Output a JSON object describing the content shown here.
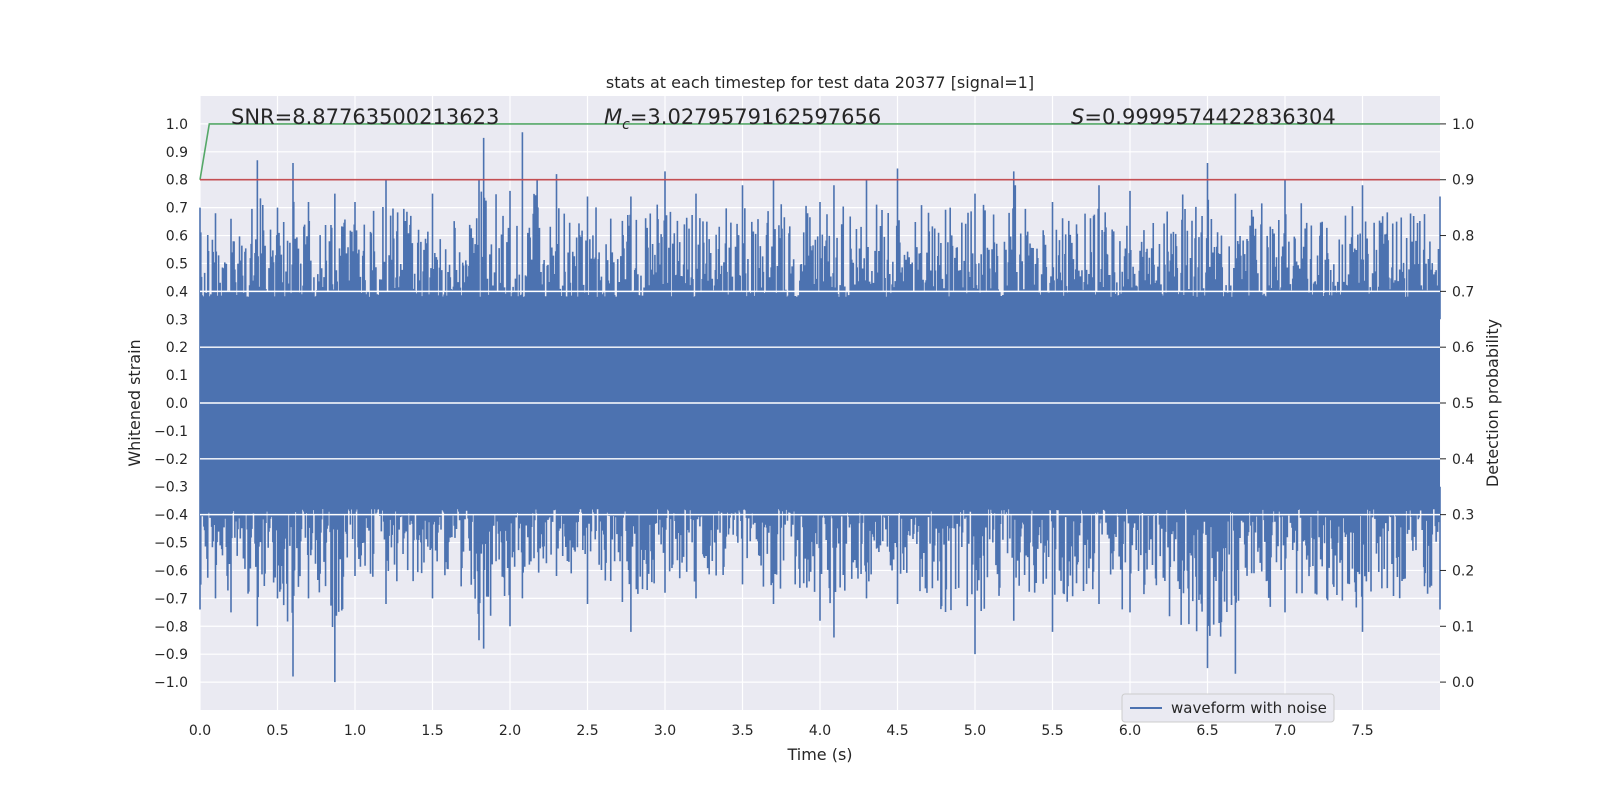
{
  "chart_data": {
    "type": "line",
    "title": "stats at each timestep for test data 20377 [signal=1]",
    "xlabel": "Time (s)",
    "ylabel": "Whitened strain",
    "y2label": "Detection probability",
    "xlim": [
      0.0,
      8.0
    ],
    "ylim": [
      -1.1,
      1.1
    ],
    "y2lim": [
      -0.05,
      1.05
    ],
    "xticks": [
      "0.0",
      "0.5",
      "1.0",
      "1.5",
      "2.0",
      "2.5",
      "3.0",
      "3.5",
      "4.0",
      "4.5",
      "5.0",
      "5.5",
      "6.0",
      "6.5",
      "7.0",
      "7.5"
    ],
    "yticks": [
      "1.0",
      "0.9",
      "0.8",
      "0.7",
      "0.6",
      "0.5",
      "0.4",
      "0.3",
      "0.2",
      "0.1",
      "0.0",
      "-0.1",
      "-0.2",
      "-0.3",
      "-0.4",
      "-0.5",
      "-0.6",
      "-0.7",
      "-0.8",
      "-0.9",
      "-1.0"
    ],
    "y2ticks": [
      "1.0",
      "0.9",
      "0.8",
      "0.7",
      "0.6",
      "0.5",
      "0.4",
      "0.3",
      "0.2",
      "0.1",
      "0.0"
    ],
    "grid": true,
    "annotations": {
      "snr": "SNR=8.87763500213623",
      "mc_symbol": "M",
      "mc_sub": "c",
      "mc_value": "=3.0279579162597656",
      "s_symbol": "S",
      "s_value": "=0.9999574422836304"
    },
    "legend": {
      "label": "waveform with noise",
      "loc": "lower right"
    },
    "series": [
      {
        "name": "waveform with noise",
        "axis": "left",
        "color": "#4c72b0",
        "description": "dense whitened strain noise, bulk within about ±0.4",
        "envelope": {
          "t": [
            0.0,
            0.1,
            0.2,
            0.37,
            0.5,
            0.6,
            0.7,
            0.87,
            1.0,
            1.2,
            1.5,
            1.8,
            1.83,
            2.0,
            2.08,
            2.3,
            2.5,
            2.78,
            3.0,
            3.2,
            3.5,
            3.7,
            4.0,
            4.09,
            4.3,
            4.5,
            5.0,
            5.25,
            5.5,
            5.8,
            6.0,
            6.5,
            6.68,
            7.0,
            7.5,
            8.0
          ],
          "max": [
            0.7,
            0.68,
            0.66,
            0.87,
            0.7,
            0.86,
            0.72,
            0.75,
            0.72,
            0.8,
            0.75,
            0.8,
            0.95,
            0.76,
            0.97,
            0.82,
            0.74,
            0.74,
            0.83,
            0.75,
            0.78,
            0.8,
            0.72,
            0.78,
            0.8,
            0.84,
            0.75,
            0.83,
            0.72,
            0.78,
            0.76,
            0.86,
            0.75,
            0.8,
            0.78,
            0.74
          ],
          "min": [
            -0.74,
            -0.7,
            -0.75,
            -0.8,
            -0.7,
            -0.98,
            -0.7,
            -1.0,
            -0.62,
            -0.72,
            -0.7,
            -0.85,
            -0.88,
            -0.8,
            -0.7,
            -0.62,
            -0.72,
            -0.82,
            -0.68,
            -0.7,
            -0.65,
            -0.72,
            -0.78,
            -0.84,
            -0.7,
            -0.72,
            -0.9,
            -0.78,
            -0.82,
            -0.72,
            -0.75,
            -0.95,
            -0.97,
            -0.75,
            -0.82,
            -0.74
          ]
        }
      },
      {
        "name": "detection probability",
        "axis": "right",
        "color": "#55a868",
        "x": [
          0.0,
          0.06,
          8.0
        ],
        "y": [
          0.9,
          1.0,
          1.0
        ]
      },
      {
        "name": "threshold",
        "axis": "right",
        "color": "#c44e52",
        "x": [
          0.0,
          8.0
        ],
        "y": [
          0.9,
          0.9
        ]
      }
    ]
  }
}
